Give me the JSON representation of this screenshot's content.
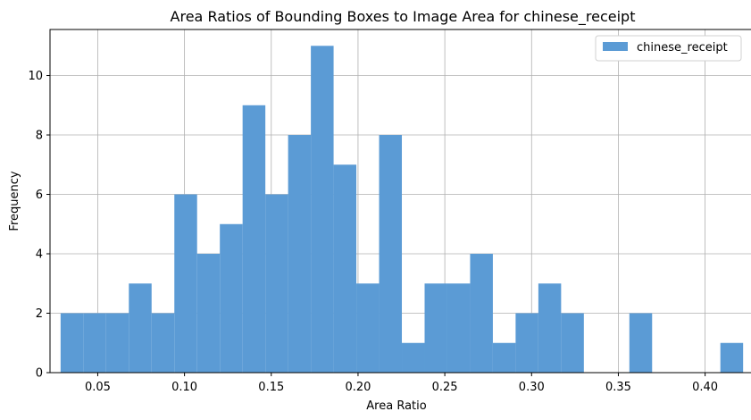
{
  "chart_data": {
    "type": "bar",
    "title": "Area Ratios of Bounding Boxes to Image Area for chinese_receipt",
    "xlabel": "Area Ratio",
    "ylabel": "Frequency",
    "xlim": [
      0.0225,
      0.4285
    ],
    "ylim": [
      0,
      11.55
    ],
    "xticks": [
      0.05,
      0.1,
      0.15,
      0.2,
      0.25,
      0.3,
      0.35,
      0.4
    ],
    "xtick_labels": [
      "0.05",
      "0.10",
      "0.15",
      "0.20",
      "0.25",
      "0.30",
      "0.35",
      "0.40"
    ],
    "yticks": [
      0,
      2,
      4,
      6,
      8,
      10
    ],
    "ytick_labels": [
      "0",
      "2",
      "4",
      "6",
      "8",
      "10"
    ],
    "grid": true,
    "legend_position": "top-right",
    "bar_color": "#5b9bd5",
    "bins": {
      "start": 0.0286,
      "end": 0.4219,
      "count": 30
    },
    "series": [
      {
        "name": "chinese_receipt",
        "values": [
          2,
          2,
          2,
          3,
          2,
          6,
          4,
          5,
          9,
          6,
          8,
          11,
          7,
          3,
          8,
          1,
          3,
          3,
          4,
          1,
          2,
          3,
          2,
          0,
          0,
          2,
          0,
          0,
          0,
          1
        ]
      }
    ]
  }
}
